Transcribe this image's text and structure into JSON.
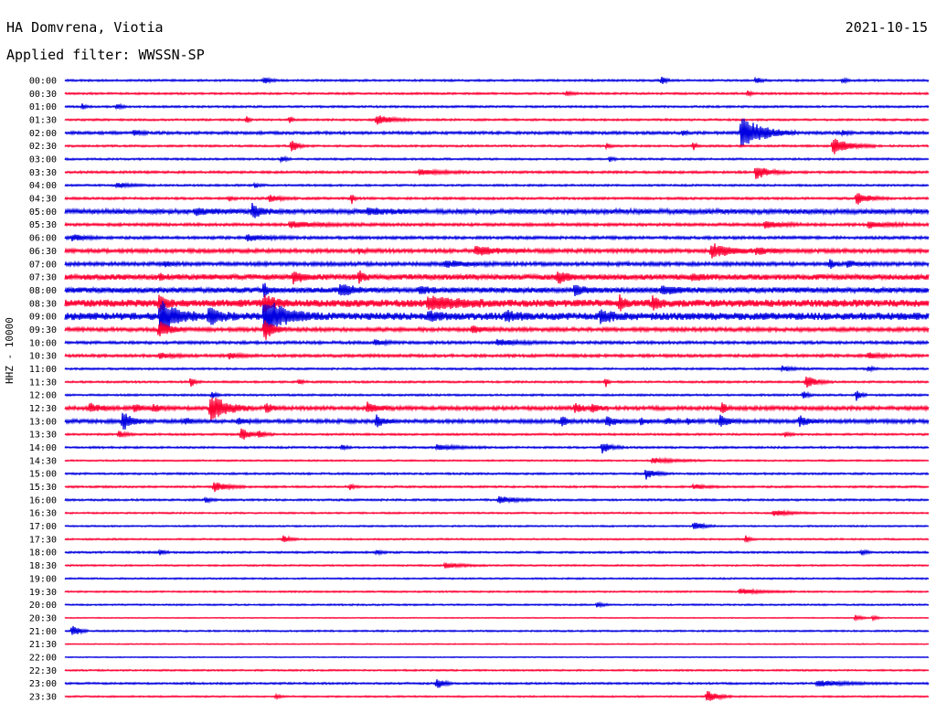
{
  "header": {
    "station": "HA Domvrena, Viotia",
    "filter": "Applied filter: WWSSN-SP",
    "date": "2021-10-15"
  },
  "chart_data": {
    "type": "line",
    "ylabel": "HHZ - 10000",
    "colors": [
      "#0000e0",
      "#ff0033"
    ],
    "rows": [
      {
        "label": "00:00",
        "noise": 1.0,
        "events": [
          [
            230,
            4,
            5
          ],
          [
            690,
            8,
            3
          ],
          [
            800,
            4,
            4
          ],
          [
            900,
            3,
            3
          ]
        ]
      },
      {
        "label": "00:30",
        "noise": 1.0,
        "events": [
          [
            580,
            3,
            5
          ],
          [
            790,
            3,
            4
          ]
        ]
      },
      {
        "label": "01:00",
        "noise": 1.0,
        "events": [
          [
            20,
            3,
            4
          ],
          [
            60,
            3,
            4
          ]
        ]
      },
      {
        "label": "01:30",
        "noise": 1.0,
        "events": [
          [
            210,
            6,
            2
          ],
          [
            260,
            5,
            2
          ],
          [
            360,
            6,
            14
          ]
        ]
      },
      {
        "label": "02:00",
        "noise": 1.5,
        "events": [
          [
            80,
            4,
            5
          ],
          [
            715,
            3,
            3
          ],
          [
            783,
            20,
            20
          ],
          [
            900,
            3,
            4
          ]
        ]
      },
      {
        "label": "02:30",
        "noise": 1.0,
        "events": [
          [
            262,
            8,
            5
          ],
          [
            627,
            3,
            3
          ],
          [
            727,
            6,
            2
          ],
          [
            888,
            10,
            16
          ]
        ]
      },
      {
        "label": "03:00",
        "noise": 1.0,
        "events": [
          [
            250,
            4,
            4
          ],
          [
            630,
            3,
            3
          ]
        ]
      },
      {
        "label": "03:30",
        "noise": 1.2,
        "events": [
          [
            410,
            3,
            20
          ],
          [
            800,
            8,
            12
          ]
        ]
      },
      {
        "label": "04:00",
        "noise": 1.0,
        "events": [
          [
            60,
            3,
            12
          ],
          [
            220,
            3,
            4
          ]
        ]
      },
      {
        "label": "04:30",
        "noise": 1.2,
        "events": [
          [
            190,
            3,
            3
          ],
          [
            236,
            4,
            10
          ],
          [
            332,
            6,
            2
          ],
          [
            916,
            7,
            12
          ]
        ]
      },
      {
        "label": "05:00",
        "noise": 2.5,
        "events": [
          [
            150,
            3,
            20
          ],
          [
            216,
            9,
            8
          ],
          [
            350,
            3,
            20
          ]
        ]
      },
      {
        "label": "05:30",
        "noise": 1.5,
        "events": [
          [
            260,
            3,
            30
          ],
          [
            810,
            4,
            16
          ],
          [
            930,
            3,
            20
          ]
        ]
      },
      {
        "label": "06:00",
        "noise": 1.5,
        "events": [
          [
            8,
            4,
            10
          ],
          [
            210,
            3,
            20
          ]
        ]
      },
      {
        "label": "06:30",
        "noise": 2.0,
        "events": [
          [
            340,
            3,
            5
          ],
          [
            475,
            5,
            20
          ],
          [
            748,
            8,
            20
          ],
          [
            800,
            3,
            20
          ]
        ]
      },
      {
        "label": "07:00",
        "noise": 2.0,
        "events": [
          [
            115,
            3,
            5
          ],
          [
            440,
            3,
            20
          ],
          [
            885,
            6,
            4
          ],
          [
            905,
            3,
            10
          ]
        ]
      },
      {
        "label": "07:30",
        "noise": 3.0,
        "events": [
          [
            110,
            4,
            4
          ],
          [
            264,
            6,
            10
          ],
          [
            340,
            8,
            4
          ],
          [
            570,
            7,
            8
          ],
          [
            725,
            3,
            10
          ]
        ]
      },
      {
        "label": "08:00",
        "noise": 3.0,
        "events": [
          [
            230,
            10,
            3
          ],
          [
            318,
            8,
            10
          ],
          [
            410,
            4,
            10
          ],
          [
            590,
            6,
            10
          ],
          [
            690,
            5,
            10
          ]
        ]
      },
      {
        "label": "08:30",
        "noise": 4.0,
        "events": [
          [
            108,
            10,
            6
          ],
          [
            230,
            8,
            10
          ],
          [
            420,
            6,
            30
          ],
          [
            642,
            8,
            4
          ],
          [
            680,
            8,
            5
          ]
        ]
      },
      {
        "label": "09:00",
        "noise": 4.0,
        "events": [
          [
            110,
            18,
            16
          ],
          [
            166,
            10,
            10
          ],
          [
            230,
            20,
            20
          ],
          [
            420,
            4,
            10
          ],
          [
            510,
            5,
            10
          ],
          [
            620,
            6,
            12
          ]
        ]
      },
      {
        "label": "09:30",
        "noise": 2.0,
        "events": [
          [
            108,
            10,
            10
          ],
          [
            230,
            14,
            8
          ],
          [
            470,
            4,
            12
          ]
        ]
      },
      {
        "label": "10:00",
        "noise": 1.5,
        "events": [
          [
            358,
            3,
            10
          ],
          [
            500,
            3,
            20
          ]
        ]
      },
      {
        "label": "10:30",
        "noise": 1.5,
        "events": [
          [
            110,
            3,
            10
          ],
          [
            190,
            3,
            10
          ],
          [
            930,
            3,
            10
          ]
        ]
      },
      {
        "label": "11:00",
        "noise": 1.0,
        "events": [
          [
            830,
            3,
            10
          ],
          [
            930,
            3,
            4
          ]
        ]
      },
      {
        "label": "11:30",
        "noise": 1.0,
        "events": [
          [
            145,
            6,
            4
          ],
          [
            270,
            3,
            4
          ],
          [
            626,
            6,
            2
          ],
          [
            858,
            7,
            10
          ]
        ]
      },
      {
        "label": "12:00",
        "noise": 1.0,
        "events": [
          [
            170,
            4,
            4
          ],
          [
            855,
            4,
            4
          ],
          [
            916,
            6,
            4
          ]
        ]
      },
      {
        "label": "12:30",
        "noise": 2.0,
        "events": [
          [
            28,
            6,
            10
          ],
          [
            80,
            5,
            6
          ],
          [
            102,
            5,
            6
          ],
          [
            168,
            16,
            16
          ],
          [
            232,
            6,
            6
          ],
          [
            350,
            6,
            10
          ],
          [
            590,
            5,
            8
          ],
          [
            610,
            5,
            6
          ],
          [
            760,
            8,
            4
          ]
        ]
      },
      {
        "label": "13:00",
        "noise": 2.0,
        "events": [
          [
            66,
            12,
            8
          ],
          [
            138,
            4,
            6
          ],
          [
            200,
            4,
            6
          ],
          [
            360,
            7,
            8
          ],
          [
            574,
            6,
            6
          ],
          [
            627,
            6,
            8
          ],
          [
            666,
            4,
            5
          ],
          [
            696,
            4,
            5
          ],
          [
            720,
            3,
            5
          ],
          [
            758,
            9,
            6
          ],
          [
            850,
            6,
            8
          ]
        ]
      },
      {
        "label": "13:30",
        "noise": 1.0,
        "events": [
          [
            62,
            4,
            6
          ],
          [
            204,
            7,
            8
          ],
          [
            224,
            4,
            6
          ],
          [
            833,
            3,
            4
          ]
        ]
      },
      {
        "label": "14:00",
        "noise": 1.0,
        "events": [
          [
            320,
            3,
            4
          ],
          [
            430,
            3,
            20
          ],
          [
            622,
            7,
            8
          ]
        ]
      },
      {
        "label": "14:30",
        "noise": 0.8,
        "events": [
          [
            680,
            3,
            20
          ]
        ]
      },
      {
        "label": "15:00",
        "noise": 1.0,
        "events": [
          [
            672,
            7,
            8
          ]
        ]
      },
      {
        "label": "15:30",
        "noise": 1.0,
        "events": [
          [
            172,
            6,
            12
          ],
          [
            330,
            3,
            4
          ],
          [
            727,
            3,
            10
          ]
        ]
      },
      {
        "label": "16:00",
        "noise": 1.0,
        "events": [
          [
            162,
            4,
            4
          ],
          [
            502,
            4,
            16
          ]
        ]
      },
      {
        "label": "16:30",
        "noise": 0.8,
        "events": [
          [
            820,
            3,
            16
          ]
        ]
      },
      {
        "label": "17:00",
        "noise": 0.8,
        "events": [
          [
            728,
            5,
            8
          ]
        ]
      },
      {
        "label": "17:30",
        "noise": 0.8,
        "events": [
          [
            252,
            5,
            6
          ],
          [
            788,
            4,
            4
          ]
        ]
      },
      {
        "label": "18:00",
        "noise": 1.0,
        "events": [
          [
            110,
            3,
            4
          ],
          [
            360,
            3,
            4
          ],
          [
            922,
            3,
            4
          ]
        ]
      },
      {
        "label": "18:30",
        "noise": 0.8,
        "events": [
          [
            440,
            3,
            16
          ]
        ]
      },
      {
        "label": "19:00",
        "noise": 0.8,
        "events": []
      },
      {
        "label": "19:30",
        "noise": 0.8,
        "events": [
          [
            780,
            3,
            20
          ]
        ]
      },
      {
        "label": "20:00",
        "noise": 0.8,
        "events": [
          [
            615,
            3,
            6
          ]
        ]
      },
      {
        "label": "20:30",
        "noise": 0.5,
        "events": [
          [
            915,
            3,
            6
          ],
          [
            935,
            3,
            4
          ]
        ]
      },
      {
        "label": "21:00",
        "noise": 0.8,
        "events": [
          [
            8,
            8,
            6
          ]
        ]
      },
      {
        "label": "21:30",
        "noise": 0.5,
        "events": []
      },
      {
        "label": "22:00",
        "noise": 0.5,
        "events": []
      },
      {
        "label": "22:30",
        "noise": 0.8,
        "events": []
      },
      {
        "label": "23:00",
        "noise": 1.0,
        "events": [
          [
            430,
            7,
            6
          ],
          [
            870,
            3,
            30
          ]
        ]
      },
      {
        "label": "23:30",
        "noise": 0.8,
        "events": [
          [
            244,
            3,
            4
          ],
          [
            742,
            7,
            10
          ]
        ]
      }
    ]
  }
}
